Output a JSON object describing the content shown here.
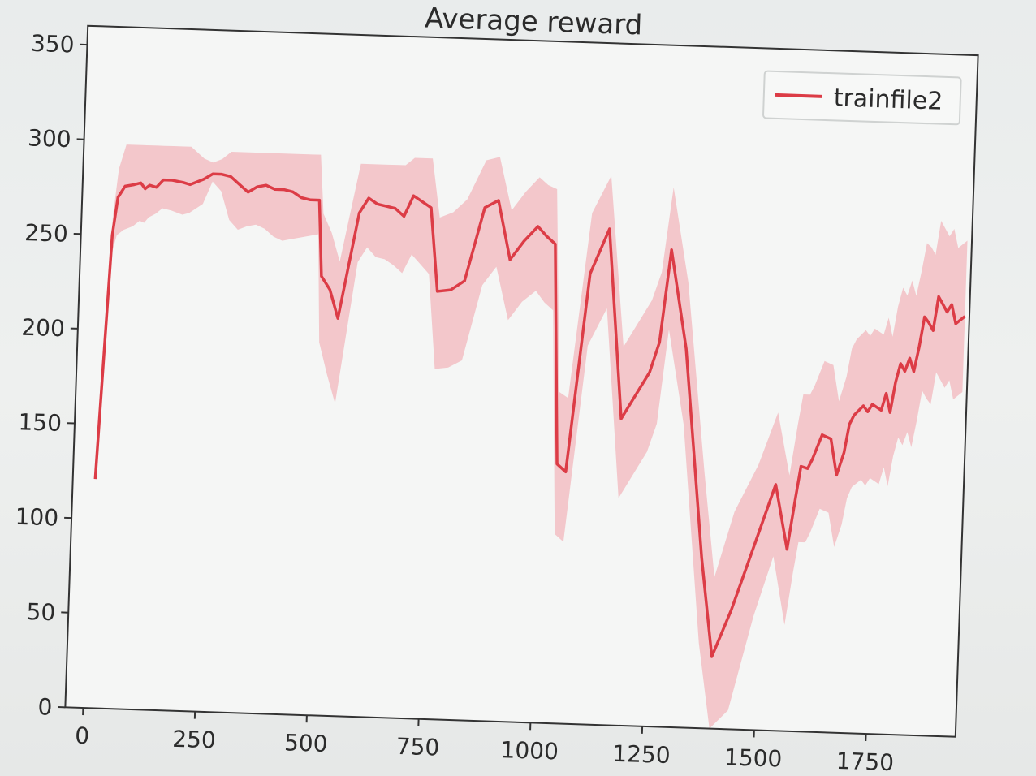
{
  "chart_data": {
    "type": "line",
    "title": "Average reward",
    "xlabel": "",
    "ylabel": "",
    "xlim": [
      -40,
      1950
    ],
    "ylim": [
      0,
      360
    ],
    "xticks": [
      0,
      250,
      500,
      750,
      1000,
      1250,
      1500,
      1750
    ],
    "xtick_labels": [
      "0",
      "250",
      "500",
      "750",
      "1000",
      "1250",
      "1500",
      "1750"
    ],
    "yticks": [
      0,
      50,
      100,
      150,
      200,
      250,
      300,
      350
    ],
    "ytick_labels": [
      "0",
      "50",
      "100",
      "150",
      "200",
      "250",
      "300",
      "350"
    ],
    "grid": false,
    "legend": {
      "position": "top-right",
      "entries": [
        "trainfile2"
      ]
    },
    "colors": {
      "line": "#dc3c46",
      "band": "#f0a0a8"
    },
    "series": [
      {
        "name": "trainfile2",
        "x": [
          10,
          30,
          40,
          55,
          75,
          90,
          100,
          110,
          125,
          140,
          160,
          185,
          200,
          230,
          250,
          270,
          290,
          310,
          330,
          350,
          370,
          390,
          410,
          430,
          450,
          470,
          490,
          500,
          520,
          540,
          580,
          600,
          620,
          640,
          660,
          680,
          700,
          720,
          740,
          760,
          790,
          820,
          860,
          890,
          920,
          950,
          980,
          1000,
          1020,
          1040,
          1060,
          1100,
          1140,
          1180,
          1240,
          1260,
          1280,
          1320,
          1370,
          1400,
          1440,
          1490,
          1530,
          1560,
          1575,
          1585,
          1600,
          1610,
          1630,
          1650,
          1665,
          1680,
          1690,
          1700,
          1720,
          1730,
          1740,
          1760,
          1770,
          1780,
          1790,
          1800,
          1810,
          1820,
          1830,
          1840,
          1850,
          1860,
          1870,
          1880,
          1890,
          1900,
          1910,
          1920,
          1930,
          1940
        ],
        "y": [
          121,
          250,
          270,
          276,
          277,
          278,
          275,
          277,
          276,
          280,
          280,
          279,
          278,
          281,
          284,
          284,
          283,
          279,
          275,
          278,
          279,
          277,
          277,
          276,
          273,
          272,
          272,
          232,
          225,
          210,
          266,
          274,
          271,
          270,
          269,
          265,
          276,
          273,
          270,
          226,
          227,
          232,
          271,
          275,
          244,
          254,
          262,
          257,
          253,
          137,
          133,
          238,
          262,
          162,
          187,
          203,
          252,
          200,
          90,
          38,
          63,
          100,
          130,
          96,
          123,
          140,
          139,
          144,
          157,
          155,
          136,
          148,
          163,
          168,
          173,
          170,
          174,
          171,
          180,
          170,
          186,
          196,
          192,
          199,
          192,
          205,
          221,
          218,
          214,
          232,
          228,
          224,
          228,
          218,
          220,
          222
        ],
        "lower": [
          121,
          240,
          250,
          253,
          255,
          258,
          257,
          260,
          262,
          265,
          264,
          262,
          263,
          268,
          280,
          275,
          260,
          255,
          257,
          258,
          256,
          252,
          250,
          251,
          252,
          253,
          254,
          197,
          180,
          165,
          240,
          248,
          243,
          242,
          239,
          235,
          245,
          240,
          235,
          185,
          186,
          190,
          230,
          240,
          212,
          222,
          228,
          222,
          218,
          100,
          96,
          200,
          220,
          120,
          145,
          160,
          210,
          160,
          45,
          0,
          10,
          60,
          92,
          56,
          84,
          100,
          100,
          105,
          118,
          116,
          98,
          110,
          124,
          130,
          134,
          131,
          135,
          132,
          141,
          131,
          147,
          157,
          153,
          160,
          152,
          166,
          182,
          178,
          175,
          192,
          188,
          184,
          188,
          178,
          180,
          182
        ],
        "upper": [
          121,
          260,
          285,
          298,
          298,
          298,
          298,
          298,
          298,
          298,
          298,
          298,
          298,
          292,
          290,
          292,
          296,
          296,
          296,
          296,
          296,
          296,
          296,
          296,
          296,
          296,
          296,
          265,
          255,
          240,
          292,
          292,
          292,
          292,
          292,
          292,
          296,
          296,
          296,
          265,
          268,
          275,
          296,
          298,
          270,
          280,
          288,
          284,
          282,
          175,
          172,
          270,
          290,
          200,
          225,
          240,
          285,
          235,
          135,
          80,
          115,
          140,
          168,
          135,
          162,
          178,
          178,
          183,
          196,
          194,
          175,
          188,
          203,
          208,
          213,
          210,
          214,
          211,
          220,
          210,
          226,
          236,
          232,
          240,
          232,
          245,
          260,
          258,
          254,
          272,
          268,
          264,
          268,
          258,
          260,
          262
        ]
      }
    ]
  }
}
